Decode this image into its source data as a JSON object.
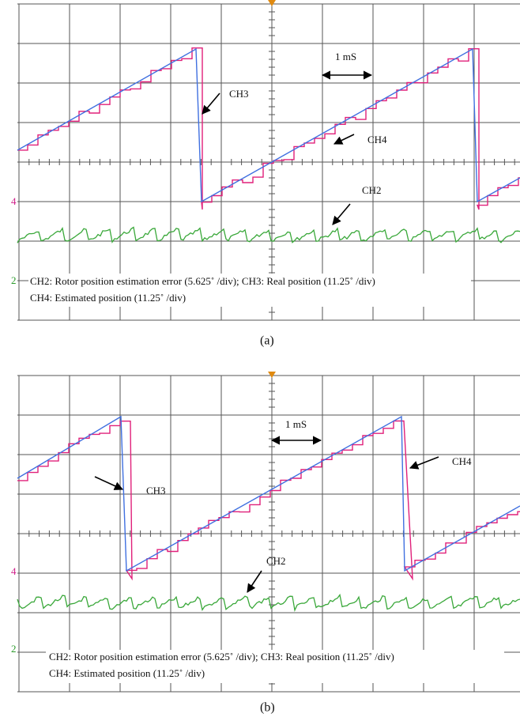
{
  "panels": [
    {
      "scale_label": "1 mS",
      "ch3_label": "CH3",
      "ch4_label": "CH4",
      "ch2_label": "CH2",
      "marker_ch4": "4",
      "marker_ch2": "2",
      "caption_lines": [
        "CH2:  Rotor position estimation error (5.625˚ /div); CH3:  Real position (11.25˚ /div)",
        "CH4:  Estimated position (11.25˚ /div)"
      ],
      "label": "(a)"
    },
    {
      "scale_label": "1 mS",
      "ch3_label": "CH3",
      "ch4_label": "CH4",
      "ch2_label": "CH2",
      "marker_ch4": "4",
      "marker_ch2": "2",
      "caption_lines": [
        "CH2:  Rotor position estimation error (5.625˚ /div); CH3:  Real position (11.25˚ /div)",
        "CH4:  Estimated position (11.25˚ /div)"
      ],
      "label": "(b)"
    }
  ]
}
